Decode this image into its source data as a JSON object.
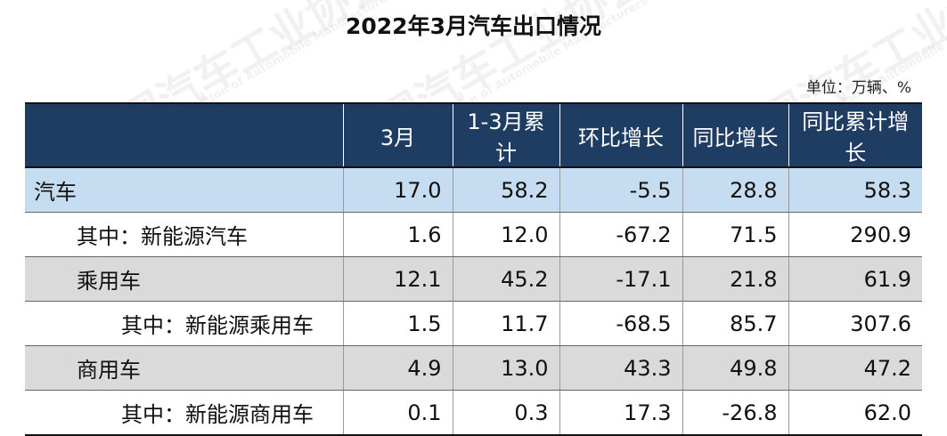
{
  "title": "2022年3月汽车出口情况",
  "unit_note": "单位：万辆、%",
  "watermark": {
    "cn": "中国汽车工业协会",
    "en": "China Association of Automobile Manufacturers"
  },
  "table": {
    "headers": [
      "",
      "3月",
      "1-3月累计",
      "环比增长",
      "同比增长",
      "同比累计增长"
    ],
    "rows": [
      {
        "label": "汽车",
        "values": [
          "17.0",
          "58.2",
          "-5.5",
          "28.8",
          "58.3"
        ]
      },
      {
        "label": "其中：新能源汽车",
        "values": [
          "1.6",
          "12.0",
          "-67.2",
          "71.5",
          "290.9"
        ]
      },
      {
        "label": "乘用车",
        "values": [
          "12.1",
          "45.2",
          "-17.1",
          "21.8",
          "61.9"
        ]
      },
      {
        "label": "其中：新能源乘用车",
        "values": [
          "1.5",
          "11.7",
          "-68.5",
          "85.7",
          "307.6"
        ]
      },
      {
        "label": "商用车",
        "values": [
          "4.9",
          "13.0",
          "43.3",
          "49.8",
          "47.2"
        ]
      },
      {
        "label": "其中：新能源商用车",
        "values": [
          "0.1",
          "0.3",
          "17.3",
          "-26.8",
          "62.0"
        ]
      }
    ]
  },
  "colors": {
    "header_bg": "#1f3d63",
    "highlight_row": "#c6dcf0",
    "shaded_row": "#dadada"
  }
}
